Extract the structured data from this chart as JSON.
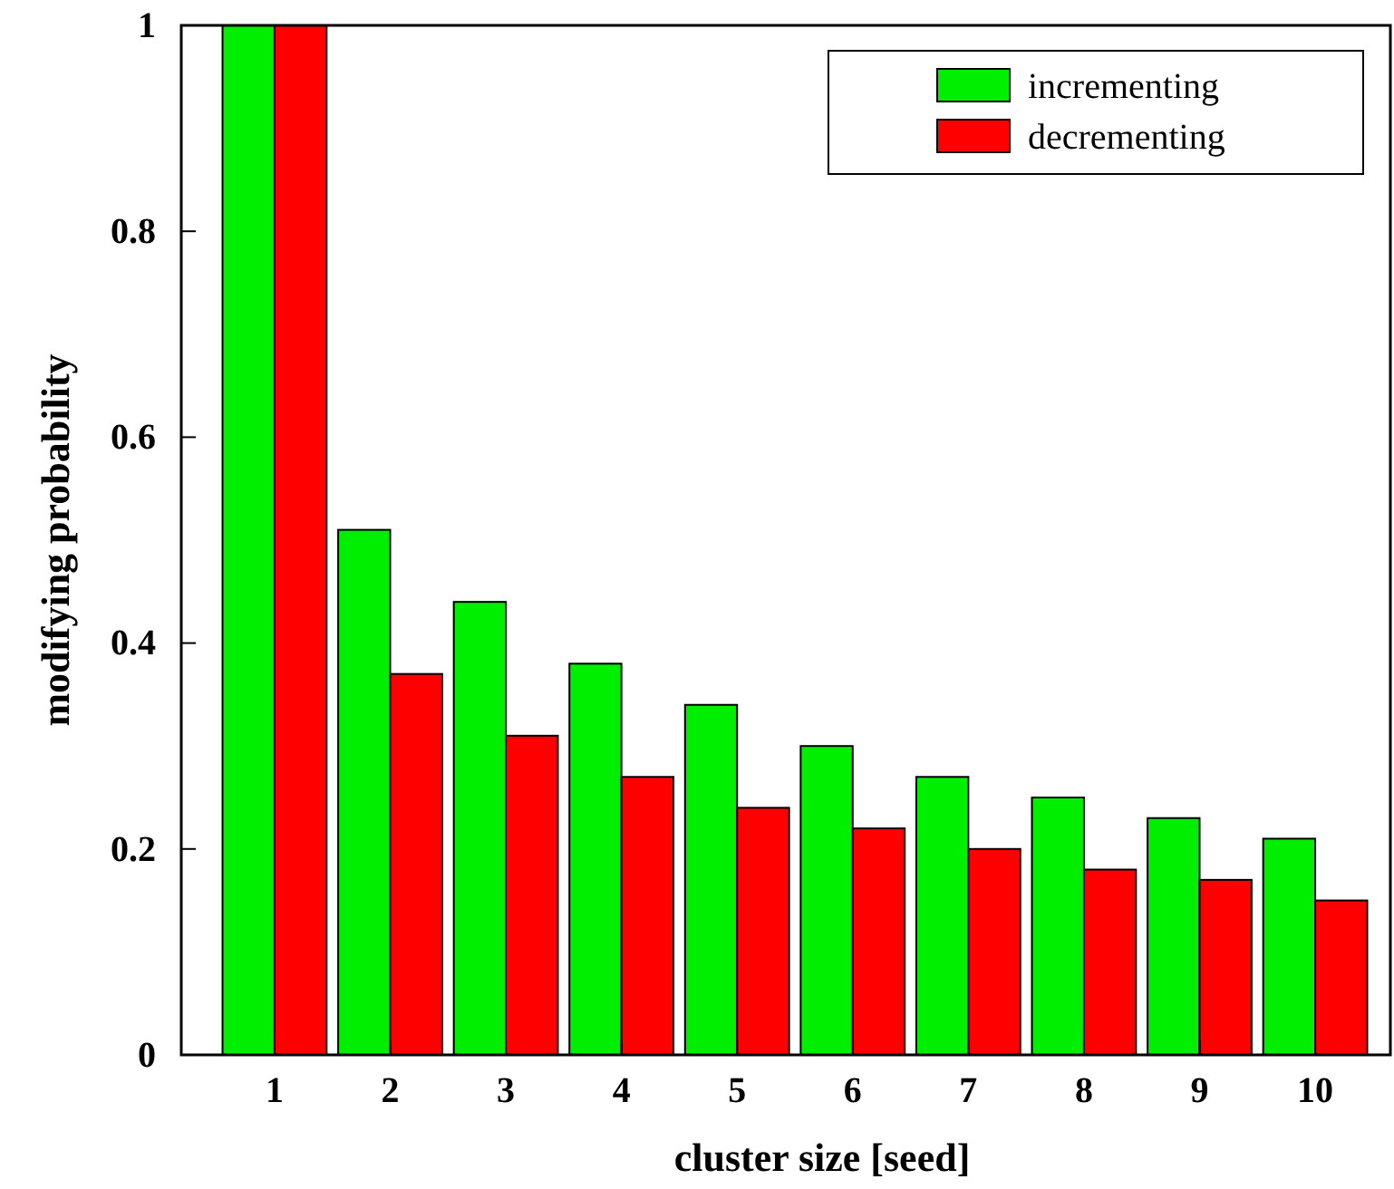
{
  "chart_data": {
    "type": "bar",
    "xlabel": "cluster size [seed]",
    "ylabel": "modifying probability",
    "categories": [
      "1",
      "2",
      "3",
      "4",
      "5",
      "6",
      "7",
      "8",
      "9",
      "10"
    ],
    "series": [
      {
        "name": "incrementing",
        "color": "#00ee00",
        "values": [
          1.0,
          0.51,
          0.44,
          0.38,
          0.34,
          0.3,
          0.27,
          0.25,
          0.23,
          0.21
        ]
      },
      {
        "name": "decrementing",
        "color": "#ff0000",
        "values": [
          1.0,
          0.37,
          0.31,
          0.27,
          0.24,
          0.22,
          0.2,
          0.18,
          0.17,
          0.15
        ]
      }
    ],
    "ylim": [
      0,
      1
    ],
    "yticks": [
      0,
      0.2,
      0.4,
      0.6,
      0.8,
      1
    ],
    "legend": "top right",
    "grid": false
  }
}
